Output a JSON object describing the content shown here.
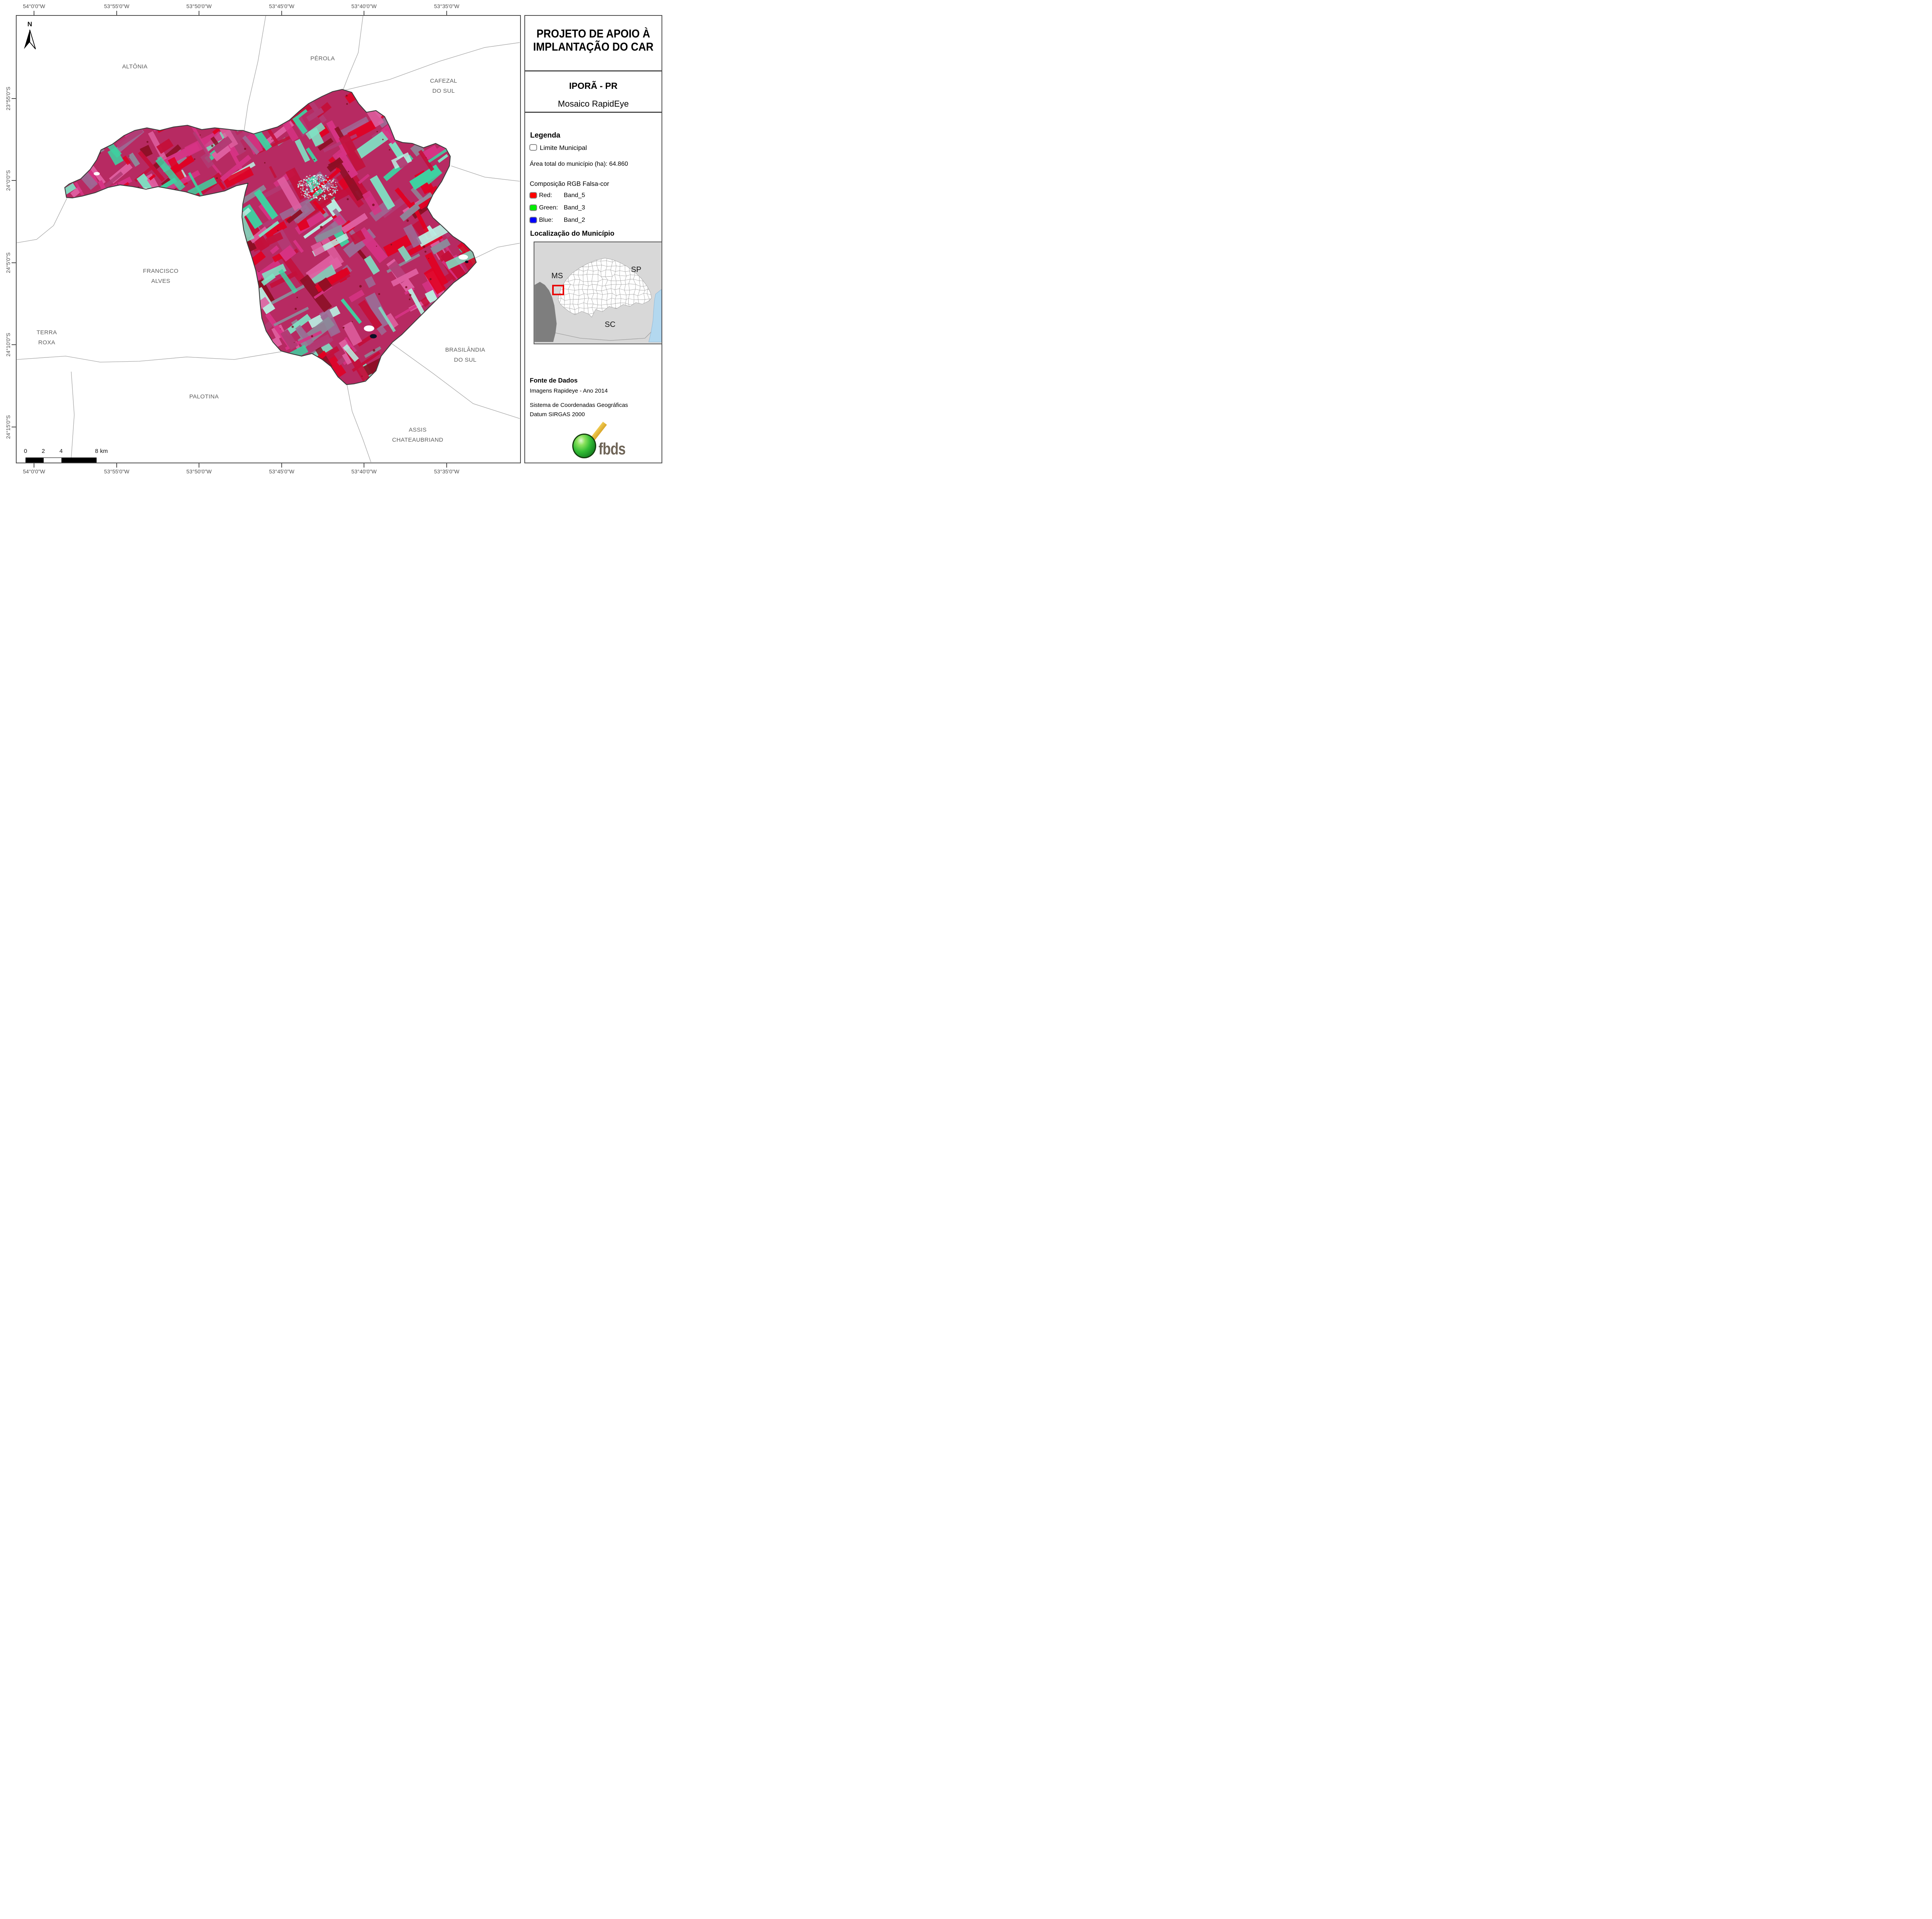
{
  "title_block": {
    "line1": "PROJETO DE APOIO À",
    "line2": "IMPLANTAÇÃO DO CAR"
  },
  "subtitle_block": {
    "municipality": "IPORÃ - PR",
    "product": "Mosaico RapidEye"
  },
  "legend": {
    "heading": "Legenda",
    "limite_municipal": "Limite Municipal",
    "area_total": "Área total do município (ha): 64.860",
    "rgb_heading": "Composição RGB Falsa-cor",
    "bands": [
      {
        "channel": "Red:",
        "band": "Band_5",
        "color": "#ff0000"
      },
      {
        "channel": "Green:",
        "band": "Band_3",
        "color": "#00ee00"
      },
      {
        "channel": "Blue:",
        "band": "Band_2",
        "color": "#0000ff"
      }
    ]
  },
  "locator": {
    "heading": "Localização do Município",
    "label_ms": "MS",
    "label_sp": "SP",
    "label_sc": "SC",
    "highlight_color": "#e80000"
  },
  "source": {
    "heading": "Fonte de Dados",
    "line1": "Imagens Rapideye - Ano 2014",
    "line2": "Sistema de Coordenadas Geográficas",
    "line3": "Datum SIRGAS 2000"
  },
  "logo": {
    "text": "fbds",
    "sphere_color": "#2eb832",
    "stripe_color": "#e0b233",
    "text_color": "#6e6457"
  },
  "map": {
    "north_label": "N",
    "neighbor_labels": [
      {
        "line1": "ALTÔNIA",
        "line2": ""
      },
      {
        "line1": "PÉROLA",
        "line2": ""
      },
      {
        "line1": "CAFEZAL",
        "line2": "DO SUL"
      },
      {
        "line1": "FRANCISCO",
        "line2": "ALVES"
      },
      {
        "line1": "TERRA",
        "line2": "ROXA"
      },
      {
        "line1": "PALOTINA",
        "line2": ""
      },
      {
        "line1": "BRASILÂNDIA",
        "line2": "DO SUL"
      },
      {
        "line1": "ASSIS",
        "line2": "CHATEAUBRIAND"
      }
    ],
    "top_coords": [
      "54°0'0\"W",
      "53°55'0\"W",
      "53°50'0\"W",
      "53°45'0\"W",
      "53°40'0\"W",
      "53°35'0\"W"
    ],
    "bottom_coords": [
      "54°0'0\"W",
      "53°55'0\"W",
      "53°50'0\"W",
      "53°45'0\"W",
      "53°40'0\"W",
      "53°35'0\"W"
    ],
    "left_coords": [
      "23°55'0\"S",
      "24°0'0\"S",
      "24°5'0\"S",
      "24°10'0\"S",
      "24°15'0\"S"
    ],
    "scalebar": {
      "labels": [
        "0",
        "2",
        "4",
        "8"
      ],
      "unit": "km"
    }
  },
  "imagery": {
    "base": "#b72a62",
    "palette": [
      {
        "c": "#e10022",
        "w": 0.14
      },
      {
        "c": "#c40f3a",
        "w": 0.1
      },
      {
        "c": "#d63384",
        "w": 0.14
      },
      {
        "c": "#df5fa0",
        "w": 0.1
      },
      {
        "c": "#b23a73",
        "w": 0.1
      },
      {
        "c": "#9c6a94",
        "w": 0.08
      },
      {
        "c": "#8c8a9a",
        "w": 0.06
      },
      {
        "c": "#3fd0a0",
        "w": 0.09
      },
      {
        "c": "#7fe2c4",
        "w": 0.07
      },
      {
        "c": "#b9efe2",
        "w": 0.05
      },
      {
        "c": "#8c0f24",
        "w": 0.07
      }
    ],
    "urban_palette": [
      "#cdeeec",
      "#a9dfe0",
      "#8fd2d8",
      "#eaf8f6",
      "#d4556e"
    ],
    "cloud_color": "#ffffff",
    "shadow_color": "#0b1026",
    "boundary_line_color": "#a6a6a6",
    "municipality_outline_color": "#3c3c3c"
  }
}
